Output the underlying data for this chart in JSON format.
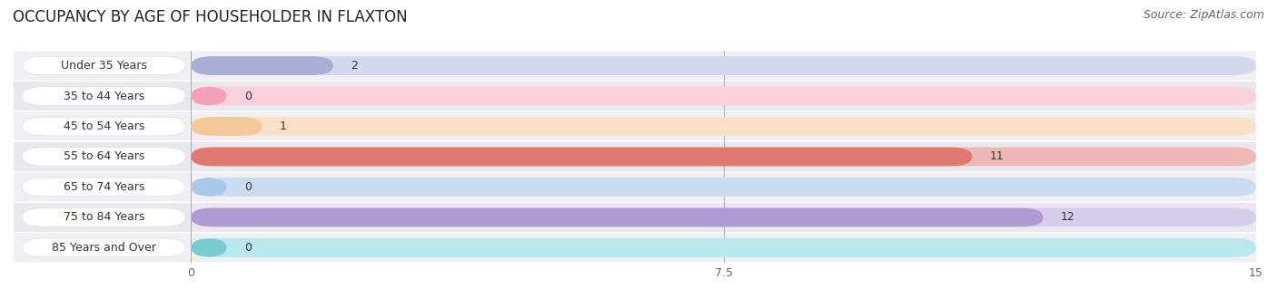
{
  "title": "OCCUPANCY BY AGE OF HOUSEHOLDER IN FLAXTON",
  "source": "Source: ZipAtlas.com",
  "categories": [
    "Under 35 Years",
    "35 to 44 Years",
    "45 to 54 Years",
    "55 to 64 Years",
    "65 to 74 Years",
    "75 to 84 Years",
    "85 Years and Over"
  ],
  "values": [
    2,
    0,
    1,
    11,
    0,
    12,
    0
  ],
  "bar_colors": [
    "#a8aed6",
    "#f4a0b8",
    "#f5c89a",
    "#e07870",
    "#a8c8e8",
    "#b09ad4",
    "#78ccd0"
  ],
  "bar_bg_colors": [
    "#d4d8ee",
    "#fad0dc",
    "#fae0c4",
    "#f0b8b4",
    "#ccdcf0",
    "#d8ccec",
    "#b8e8ec"
  ],
  "xlim": [
    0,
    15
  ],
  "xticks": [
    0,
    7.5,
    15
  ],
  "row_bg_even": "#f0f0f4",
  "row_bg_odd": "#e8e8ee",
  "background_color": "#ffffff",
  "title_fontsize": 12,
  "source_fontsize": 9,
  "label_fontsize": 9,
  "value_fontsize": 9,
  "bar_height": 0.62
}
